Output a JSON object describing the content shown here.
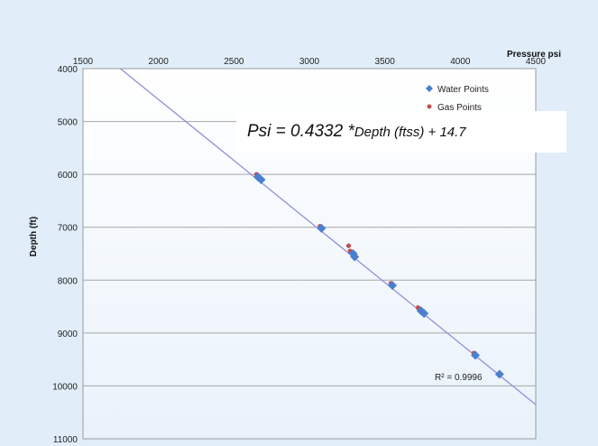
{
  "chart_data": {
    "type": "scatter",
    "title": "",
    "xlabel": "Pressure psi",
    "ylabel": "Depth (ft)",
    "x_axis_position": "top",
    "y_axis_inverted": true,
    "xlim": [
      1500,
      4500
    ],
    "ylim": [
      4000,
      11000
    ],
    "x_ticks": [
      1500,
      2000,
      2500,
      3000,
      3500,
      4000,
      4500
    ],
    "y_ticks": [
      4000,
      5000,
      6000,
      7000,
      8000,
      9000,
      10000,
      11000
    ],
    "grid": "horizontal",
    "legend_position": "top-right",
    "series": [
      {
        "name": "Water Points",
        "marker": "diamond",
        "color": "#4a7fd1",
        "x": [
          2660,
          2680,
          3080,
          3290,
          3300,
          3550,
          3740,
          3760,
          4100,
          4260
        ],
        "y": [
          6050,
          6100,
          7020,
          7500,
          7560,
          8100,
          8580,
          8630,
          9420,
          9780
        ]
      },
      {
        "name": "Gas Points",
        "marker": "circle",
        "color": "#c0504d",
        "x": [
          2650,
          3070,
          3260,
          3270,
          3540,
          3720,
          4090
        ],
        "y": [
          6000,
          6980,
          7350,
          7450,
          8060,
          8520,
          9380
        ]
      }
    ],
    "trendline": {
      "slope": 0.4332,
      "intercept": 14.7,
      "color": "#8f8fdc"
    },
    "annotations": {
      "equation_main": "Psi = 0.4332 * ",
      "equation_sub": "Depth (ftss) + 14.7",
      "r_squared": "R² = 0.9996"
    }
  }
}
